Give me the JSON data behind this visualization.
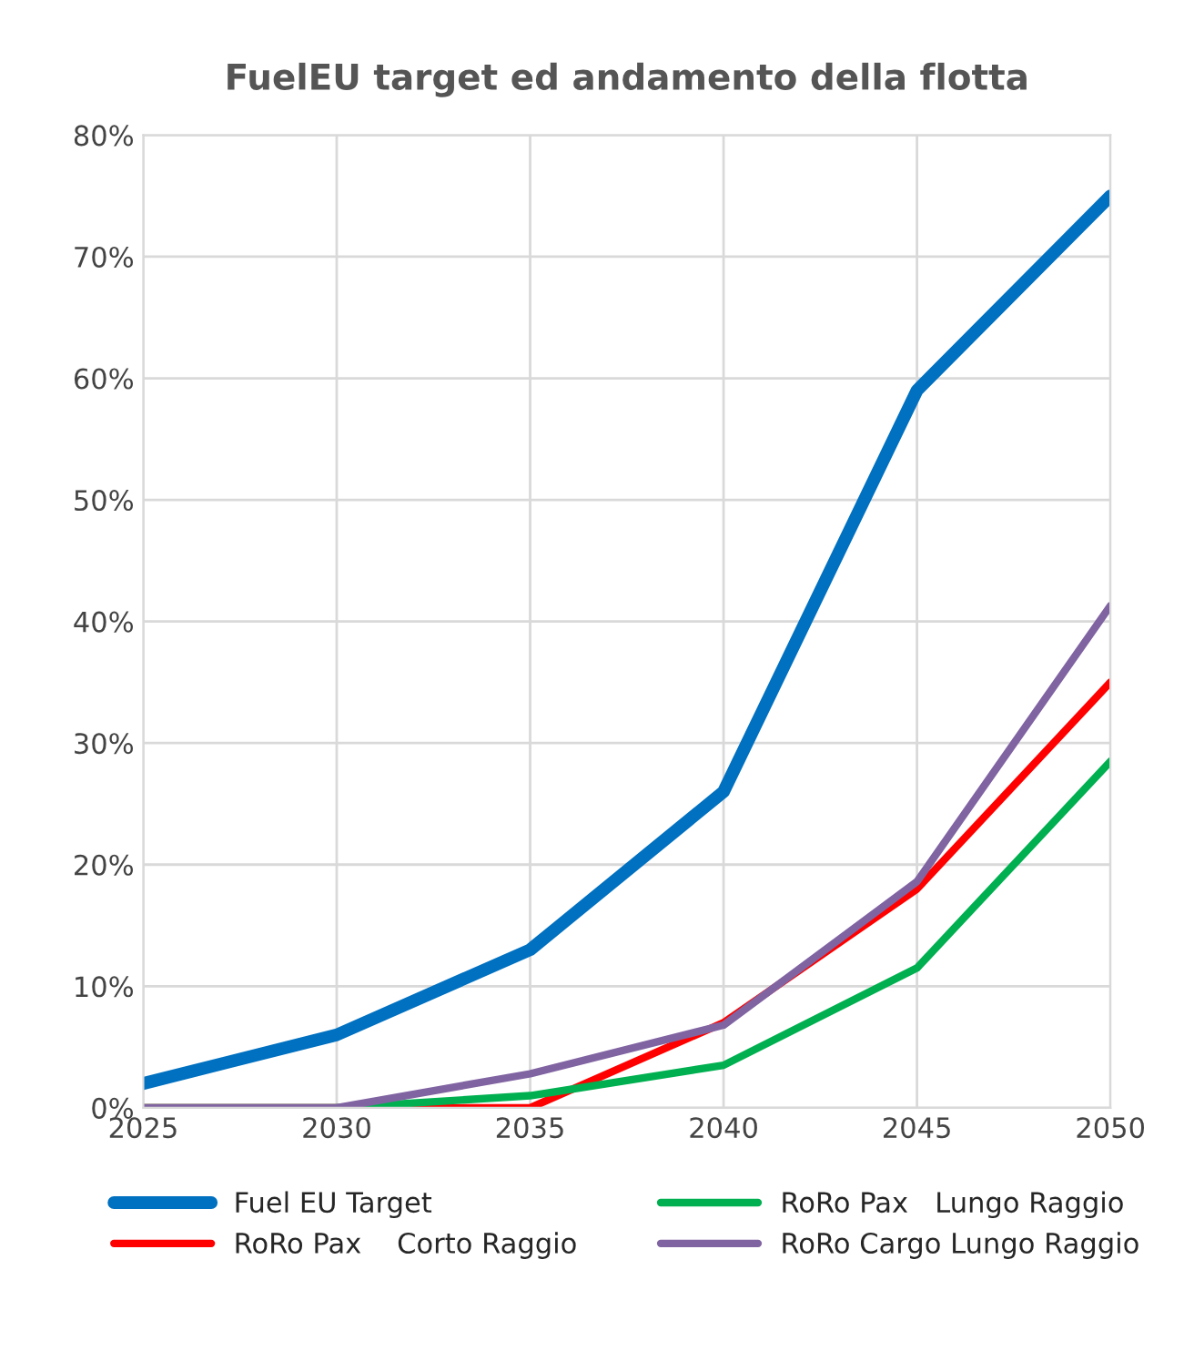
{
  "chart_data": {
    "type": "line",
    "title": "FuelEU target ed andamento della flotta",
    "x": [
      2025,
      2030,
      2035,
      2040,
      2045,
      2050
    ],
    "series": [
      {
        "name": "Fuel EU Target",
        "color": "#0070c0",
        "values": [
          2,
          6,
          13,
          26,
          59,
          75
        ]
      },
      {
        "name": "RoRo Pax    Corto Raggio",
        "color": "#ff0000",
        "values": [
          0,
          0,
          0,
          7,
          18,
          35
        ]
      },
      {
        "name": "RoRo Pax   Lungo Raggio",
        "color": "#00b050",
        "values": [
          0,
          0,
          1,
          3.5,
          11.5,
          28.5
        ]
      },
      {
        "name": "RoRo Cargo Lungo Raggio",
        "color": "#8064a2",
        "values": [
          0,
          0,
          2.8,
          6.8,
          18.6,
          41.3
        ]
      }
    ],
    "xlim": [
      2025,
      2050
    ],
    "xticks": [
      2025,
      2030,
      2035,
      2040,
      2045,
      2050
    ],
    "ylim": [
      0,
      80
    ],
    "yticks": [
      {
        "value": 0,
        "label": "0%"
      },
      {
        "value": 10,
        "label": "10%"
      },
      {
        "value": 20,
        "label": "20%"
      },
      {
        "value": 30,
        "label": "30%"
      },
      {
        "value": 40,
        "label": "40%"
      },
      {
        "value": 50,
        "label": "50%"
      },
      {
        "value": 60,
        "label": "60%"
      },
      {
        "value": 70,
        "label": "70%"
      },
      {
        "value": 80,
        "label": "80%"
      }
    ],
    "grid": true,
    "legend": "bottom",
    "marker": "none",
    "line_style": "solid"
  }
}
